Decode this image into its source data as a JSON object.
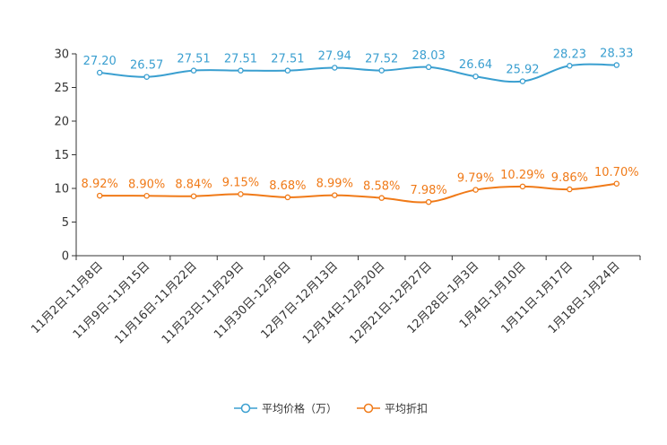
{
  "chart_data": {
    "type": "line",
    "title": "",
    "xlabel": "",
    "ylabel": "",
    "ylim": [
      0,
      30
    ],
    "yticks": [
      0,
      5,
      10,
      15,
      20,
      25,
      30
    ],
    "grid": false,
    "legend_position": "bottom-center",
    "categories": [
      "11月2日-11月8日",
      "11月9日-11月15日",
      "11月16日-11月22日",
      "11月23日-11月29日",
      "11月30日-12月6日",
      "12月7日-12月13日",
      "12月14日-12月20日",
      "12月21日-12月27日",
      "12月28日-1月3日",
      "1月4日-1月10日",
      "1月11日-1月17日",
      "1月18日-1月24日"
    ],
    "series": [
      {
        "name": "平均价格（万）",
        "color": "#3a9fd0",
        "values": [
          27.2,
          26.57,
          27.51,
          27.51,
          27.51,
          27.94,
          27.52,
          28.03,
          26.64,
          25.92,
          28.23,
          28.33
        ],
        "labels": [
          "27.20",
          "26.57",
          "27.51",
          "27.51",
          "27.51",
          "27.94",
          "27.52",
          "28.03",
          "26.64",
          "25.92",
          "28.23",
          "28.33"
        ]
      },
      {
        "name": "平均折扣",
        "color": "#f07a18",
        "values": [
          8.92,
          8.9,
          8.84,
          9.15,
          8.68,
          8.99,
          8.58,
          7.98,
          9.79,
          10.29,
          9.86,
          10.7
        ],
        "labels": [
          "8.92%",
          "8.90%",
          "8.84%",
          "9.15%",
          "8.68%",
          "8.99%",
          "8.58%",
          "7.98%",
          "9.79%",
          "10.29%",
          "9.86%",
          "10.70%"
        ]
      }
    ]
  }
}
